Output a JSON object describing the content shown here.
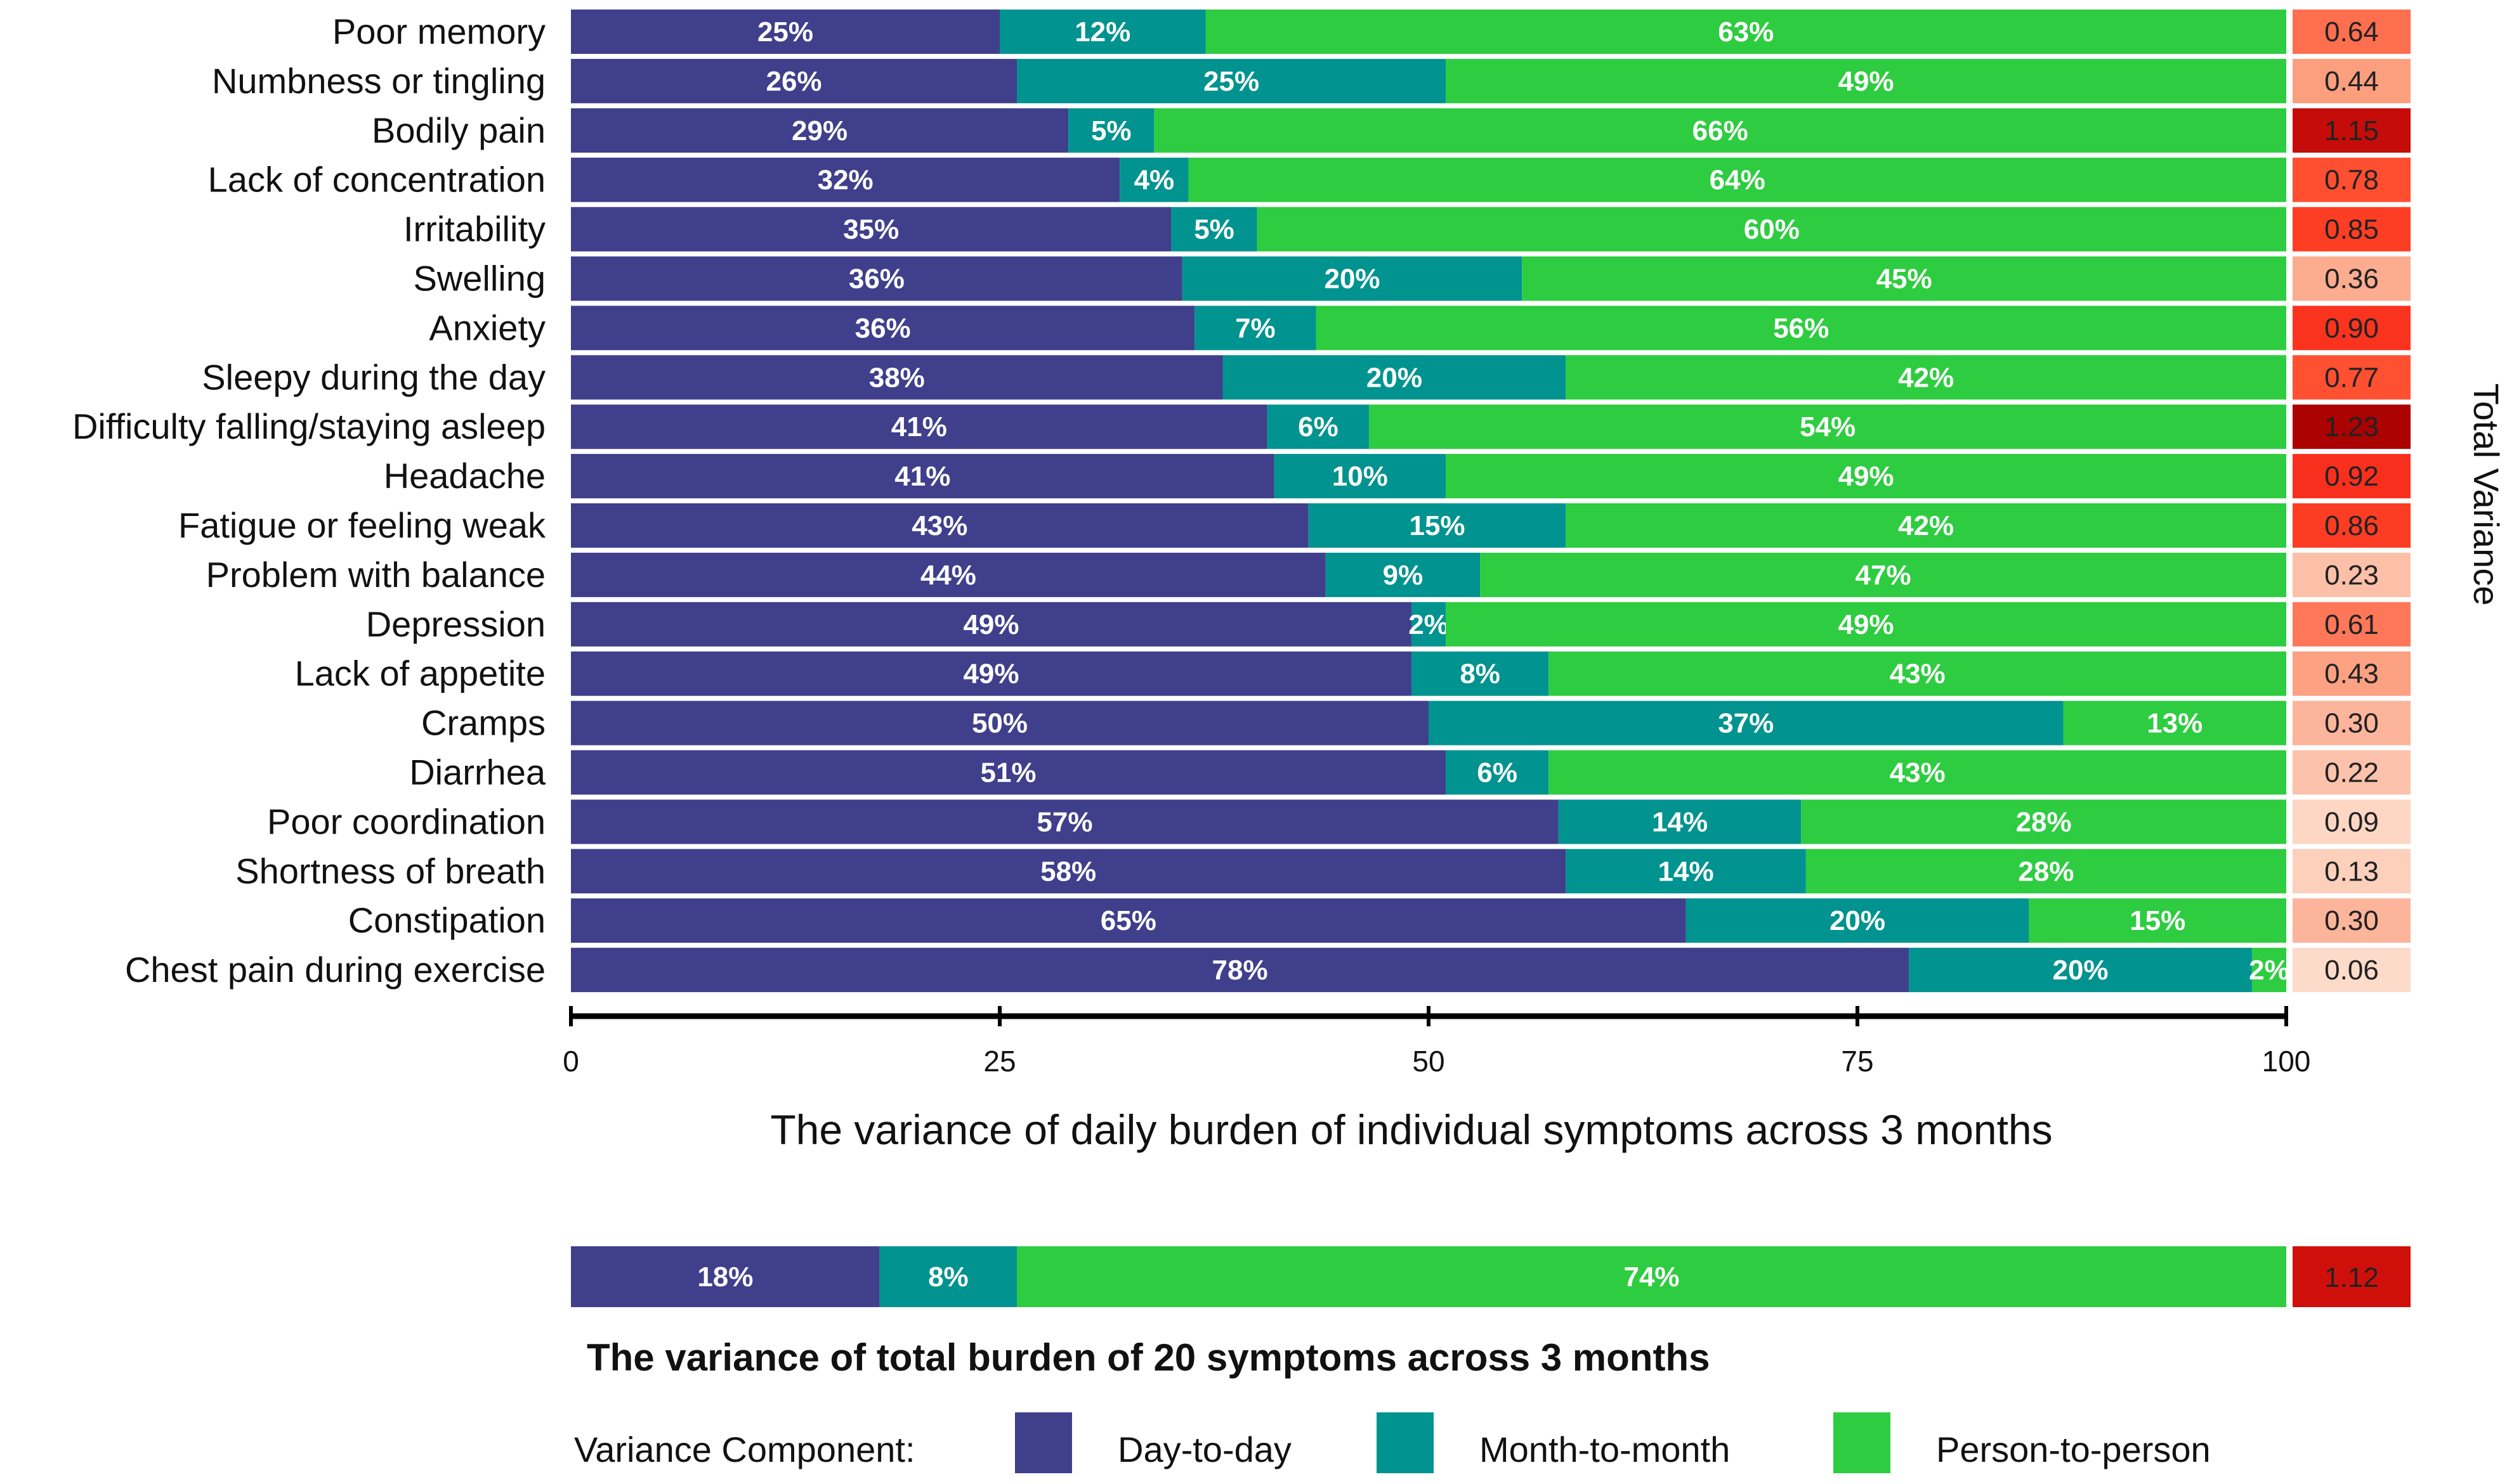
{
  "chart_data": {
    "type": "bar",
    "orientation": "horizontal-stacked-percent",
    "xlabel": "The variance of daily burden of individual symptoms across 3 months",
    "side_label": "Total Variance",
    "xlim": [
      0,
      100
    ],
    "xticks": [
      "0",
      "25",
      "50",
      "75",
      "100"
    ],
    "categories": [
      "Poor memory",
      "Numbness or tingling",
      "Bodily pain",
      "Lack of concentration",
      "Irritability",
      "Swelling",
      "Anxiety",
      "Sleepy during the day",
      "Difficulty falling/staying asleep",
      "Headache",
      "Fatigue or feeling weak",
      "Problem with balance",
      "Depression",
      "Lack of appetite",
      "Cramps",
      "Diarrhea",
      "Poor coordination",
      "Shortness of breath",
      "Constipation",
      "Chest pain during exercise"
    ],
    "series": [
      {
        "name": "Day-to-day",
        "color": "#3F3F8C",
        "values": [
          25,
          26,
          29,
          32,
          35,
          36,
          36,
          38,
          41,
          41,
          43,
          44,
          49,
          49,
          50,
          51,
          57,
          58,
          65,
          78
        ]
      },
      {
        "name": "Month-to-month",
        "color": "#00938F",
        "values": [
          12,
          25,
          5,
          4,
          5,
          20,
          7,
          20,
          6,
          10,
          15,
          9,
          2,
          8,
          37,
          6,
          14,
          14,
          20,
          20
        ]
      },
      {
        "name": "Person-to-person",
        "color": "#2ECC40",
        "values": [
          63,
          49,
          66,
          64,
          60,
          45,
          56,
          42,
          54,
          49,
          42,
          47,
          49,
          43,
          13,
          43,
          28,
          28,
          15,
          2
        ]
      }
    ],
    "total_variance": [
      "0.64",
      "0.44",
      "1.15",
      "0.78",
      "0.85",
      "0.36",
      "0.90",
      "0.77",
      "1.23",
      "0.92",
      "0.86",
      "0.23",
      "0.61",
      "0.43",
      "0.30",
      "0.22",
      "0.09",
      "0.13",
      "0.30",
      "0.06"
    ],
    "total_burden": {
      "title": "The variance of total burden of 20 symptoms across 3 months",
      "values": [
        18,
        8,
        74
      ],
      "total_variance": "1.12"
    },
    "legend": {
      "title": "Variance Component:",
      "position": "bottom",
      "items": [
        "Day-to-day",
        "Month-to-month",
        "Person-to-person"
      ]
    }
  }
}
